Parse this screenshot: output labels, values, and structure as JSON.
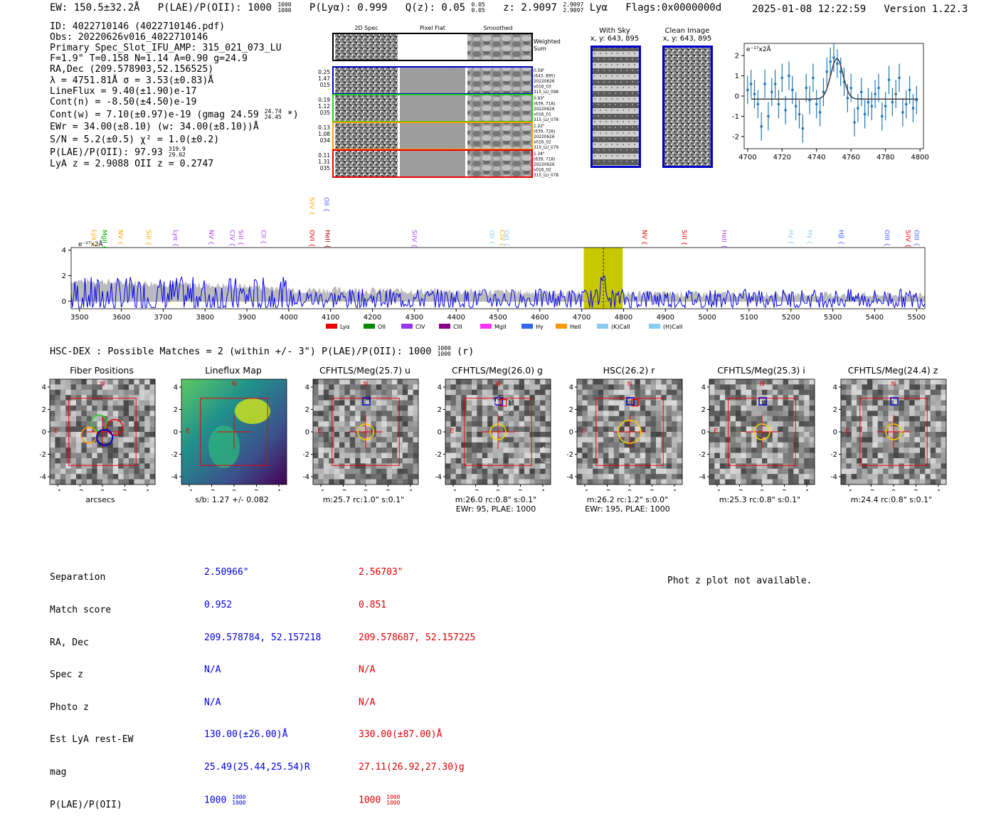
{
  "header": {
    "ew": "EW: 150.5±32.2Å",
    "plae": "P(LAE)/P(OII): 1000",
    "plae_hi": "1000",
    "plae_lo": "1000",
    "plya": "P(Lyα): 0.999",
    "qz": "Q(z): 0.05",
    "qz_hi": "0.05",
    "qz_lo": "0.05",
    "z": "z: 2.9097",
    "z_hi": "2.9097",
    "z_lo": "2.9097",
    "line": "Lyα",
    "flags": "Flags:0x0000000d",
    "timestamp": "2025-01-08 12:22:59",
    "version": "Version 1.22.3"
  },
  "summary": {
    "lines": [
      "ID: 4022710146 (4022710146.pdf)",
      "Obs: 20220626v016_4022710146",
      "Primary Spec_Slot_IFU_AMP: 315_021_073_LU",
      "F=1.9\"  T=0.158  N=1.14  A=0.90  g=24.9",
      "RA,Dec (209.578903,52.156525)",
      "λ = 4751.81Å   σ = 3.53(±0.83)Å",
      "LineFlux = 9.40(±1.90)e-17",
      "Cont(n) = -8.50(±4.50)e-19",
      "Cont(w) = 7.10(±0.97)e-19 (gmag 24.59",
      "EWr = 34.00(±8.10) (w: 34.00(±8.10))Å",
      "S/N = 5.2(±0.5)  χ² = 1.0(±0.2)",
      "P(LAE)/P(OII): 97.93",
      "LyA z = 2.9088  OII z = 0.2747"
    ],
    "gmag_hi": "24.74",
    "gmag_lo": "24.45",
    "gmag_tail": "*)",
    "plae_hi": "319.9",
    "plae_lo": "29.02"
  },
  "spec2d": {
    "col_headers": [
      "2D Spec",
      "Pixel Flat",
      "Smoothed"
    ],
    "weighted_label": [
      "Weighted",
      "Sum"
    ],
    "rows": [
      {
        "left": [
          "0.25",
          "1.47",
          "015"
        ],
        "right": [
          "0.59\"",
          "(643, 895)",
          "20220626",
          "v016_03",
          "315_LU_098"
        ],
        "color": "#0000cc"
      },
      {
        "left": [
          "0.19",
          "1.12",
          "035"
        ],
        "right": [
          "0.93\"",
          "(639, 718)",
          "20220626",
          "v016_01",
          "315_LU_078"
        ],
        "color": "#22cc22"
      },
      {
        "left": [
          "0.13",
          "1.08",
          "034"
        ],
        "right": [
          "1.22\"",
          "(639, 726)",
          "20220626",
          "v016_02",
          "315_LU_079"
        ],
        "color": "#ff9900"
      },
      {
        "left": [
          "0.11",
          "1.31",
          "035"
        ],
        "right": [
          "1.34\"",
          "(639, 718)",
          "20220626",
          "v016_02",
          "315_LU_078"
        ],
        "color": "#ee0000"
      }
    ]
  },
  "sky": {
    "title": "With Sky",
    "coords": "x, y: 643, 895"
  },
  "clean": {
    "title": "Clean Image",
    "coords": "x, y: 643, 895"
  },
  "chart_data": [
    {
      "type": "scatter",
      "name": "line-zoom",
      "unit_label": "e⁻¹⁷x2Å",
      "xlim": [
        4698,
        4802
      ],
      "ylim": [
        -2.6,
        2.6
      ],
      "xticks": [
        4700,
        4720,
        4740,
        4760,
        4780,
        4800
      ],
      "yticks": [
        -2,
        -1,
        0,
        1,
        2
      ],
      "x": [
        4700,
        4702,
        4704,
        4706,
        4708,
        4710,
        4712,
        4714,
        4716,
        4718,
        4720,
        4722,
        4724,
        4726,
        4728,
        4730,
        4732,
        4734,
        4736,
        4738,
        4740,
        4742,
        4744,
        4746,
        4748,
        4750,
        4752,
        4754,
        4756,
        4758,
        4760,
        4762,
        4764,
        4766,
        4768,
        4770,
        4772,
        4774,
        4776,
        4778,
        4780,
        4782,
        4784,
        4786,
        4788,
        4790,
        4792,
        4794,
        4796,
        4798
      ],
      "y": [
        0.3,
        0.6,
        0.1,
        -0.4,
        -1.5,
        0.6,
        -1.0,
        0.2,
        0.6,
        -0.4,
        0.9,
        -0.7,
        1.0,
        0.3,
        -0.5,
        -0.9,
        -1.6,
        0.4,
        -0.2,
        0.9,
        -0.4,
        -0.8,
        0.2,
        1.2,
        1.7,
        1.9,
        1.6,
        1.2,
        0.7,
        -0.1,
        0.4,
        -1.3,
        -0.6,
        0.2,
        -0.9,
        -0.3,
        -0.5,
        0.1,
        0.4,
        -1.0,
        -0.5,
        0.8,
        -0.3,
        0.1,
        0.9,
        -0.8,
        -0.4,
        0.3,
        -0.6,
        -0.2
      ],
      "yerr": [
        0.7,
        0.7,
        0.7,
        0.7,
        0.7,
        0.7,
        0.7,
        0.7,
        0.7,
        0.7,
        0.7,
        0.7,
        0.7,
        0.7,
        0.7,
        0.7,
        0.7,
        0.7,
        0.7,
        0.7,
        0.7,
        0.7,
        0.7,
        0.7,
        0.7,
        0.7,
        0.7,
        0.7,
        0.7,
        0.7,
        0.7,
        0.7,
        0.7,
        0.7,
        0.7,
        0.7,
        0.7,
        0.7,
        0.7,
        0.7,
        0.7,
        0.7,
        0.7,
        0.7,
        0.7,
        0.7,
        0.7,
        0.7,
        0.7,
        0.7
      ],
      "model": {
        "center": 4751.8,
        "sigma": 3.53,
        "amp": 2.0,
        "baseline": -0.15
      }
    },
    {
      "type": "line",
      "name": "full-spectrum",
      "unit_label": "e⁻¹⁷x2Å",
      "xlim": [
        3480,
        5520
      ],
      "ylim": [
        -0.6,
        4.2
      ],
      "xticks": [
        3500,
        3600,
        3700,
        3800,
        3900,
        4000,
        4100,
        4200,
        4300,
        4400,
        4500,
        4600,
        4700,
        4800,
        4900,
        5000,
        5100,
        5200,
        5300,
        5400,
        5500
      ],
      "yticks": [
        0,
        2,
        4
      ],
      "highlight_range": [
        4705,
        4798
      ],
      "line_center": 4751.8,
      "lines": [
        {
          "label": "Lyα",
          "x": 3525,
          "color": "#ffaa00",
          "row": 1
        },
        {
          "label": "MgII",
          "x": 3550,
          "color": "#00aa00",
          "row": 1
        },
        {
          "label": "NV",
          "x": 3588,
          "color": "#ffaa00",
          "row": 1
        },
        {
          "label": "SiII",
          "x": 3655,
          "color": "#ffaa00",
          "row": 1
        },
        {
          "label": "Lyα",
          "x": 3720,
          "color": "#aa44ee",
          "row": 1
        },
        {
          "label": "NV",
          "x": 3805,
          "color": "#aa44ee",
          "row": 1
        },
        {
          "label": "CIV",
          "x": 3855,
          "color": "#aa44ee",
          "row": 1
        },
        {
          "label": "SiII",
          "x": 3875,
          "color": "#aa44ee",
          "row": 1
        },
        {
          "label": "CII",
          "x": 3930,
          "color": "#aa44ee",
          "row": 1
        },
        {
          "label": "OVI",
          "x": 4045,
          "color": "#ee0000",
          "row": 1
        },
        {
          "label": "HeII",
          "x": 4083,
          "color": "#aa0000",
          "row": 1
        },
        {
          "label": "SiIV",
          "x": 4045,
          "color": "#ffaa00",
          "row": 0
        },
        {
          "label": "OII",
          "x": 4080,
          "color": "#4466ff",
          "row": 0
        },
        {
          "label": "SiIV",
          "x": 4290,
          "color": "#aa44ee",
          "row": 1
        },
        {
          "label": "OII",
          "x": 4475,
          "color": "#88ccff",
          "row": 1
        },
        {
          "label": "CIV",
          "x": 4500,
          "color": "#ffaa00",
          "row": 1
        },
        {
          "label": "OIII",
          "x": 4510,
          "color": "#88ccff",
          "row": 1
        },
        {
          "label": "NV",
          "x": 4840,
          "color": "#ee0000",
          "row": 1
        },
        {
          "label": "SiII",
          "x": 4935,
          "color": "#ee0000",
          "row": 1
        },
        {
          "label": "HeII",
          "x": 5030,
          "color": "#aa44ee",
          "row": 1
        },
        {
          "label": "Hγ",
          "x": 5190,
          "color": "#88ccff",
          "row": 1
        },
        {
          "label": "Hγ",
          "x": 5235,
          "color": "#88ccff",
          "row": 1
        },
        {
          "label": "Hβ",
          "x": 5310,
          "color": "#4466ff",
          "row": 1
        },
        {
          "label": "OIII",
          "x": 5420,
          "color": "#4466ff",
          "row": 1
        },
        {
          "label": "SiIV",
          "x": 5470,
          "color": "#ee0000",
          "row": 1
        },
        {
          "label": "OIII",
          "x": 5490,
          "color": "#4466ff",
          "row": 1
        }
      ],
      "legend": [
        {
          "label": "Lyα",
          "color": "#ee0000"
        },
        {
          "label": "OII",
          "color": "#008800"
        },
        {
          "label": "CIV",
          "color": "#9933ee"
        },
        {
          "label": "CIII",
          "color": "#880088"
        },
        {
          "label": "MgII",
          "color": "#ff33ff"
        },
        {
          "label": "Hγ",
          "color": "#3366ee"
        },
        {
          "label": "HeII",
          "color": "#ff9900"
        },
        {
          "label": "(K)CaII",
          "color": "#88ccee"
        },
        {
          "label": "(H)CaII",
          "color": "#88ccee"
        }
      ]
    }
  ],
  "hsc": {
    "prefix": "HSC-DEX : Possible Matches = 2 (within +/- 3\")  P(LAE)/P(OII): 1000",
    "frac_hi": "1000",
    "frac_lo": "1000",
    "suffix": "(r)"
  },
  "cutouts": [
    {
      "title": "Fiber Positions",
      "caption": "arcsecs",
      "caption2": ""
    },
    {
      "title": "Lineflux Map",
      "caption": "s/b: 1.27 +/- 0.082",
      "caption2": ""
    },
    {
      "title": "CFHTLS/Meg(25.7) u",
      "caption": "m:25.7 rc:1.0\"  s:0.1\"",
      "caption2": ""
    },
    {
      "title": "CFHTLS/Meg(26.0) g",
      "caption": "m:26.0 rc:0.8\"  s:0.1\"",
      "caption2": "EWr: 95, PLAE: 1000"
    },
    {
      "title": "HSC(26.2) r",
      "caption": "m:26.2 rc:1.2\"  s:0.0\"",
      "caption2": "EWr: 195, PLAE: 1000"
    },
    {
      "title": "CFHTLS/Meg(25.3) i",
      "caption": "m:25.3 rc:0.8\"  s:0.1\"",
      "caption2": ""
    },
    {
      "title": "CFHTLS/Meg(24.4) z",
      "caption": "m:24.4 rc:0.8\"  s:0.1\"",
      "caption2": ""
    }
  ],
  "cutout_axis": {
    "ticks": [
      -4,
      -2,
      0,
      2,
      4
    ],
    "north": "N",
    "east": "E"
  },
  "matches": {
    "labels": [
      "Separation",
      "Match score",
      "RA, Dec",
      "Spec z",
      "Photo z",
      "Est LyA rest-EW",
      "mag",
      "P(LAE)/P(OII)"
    ],
    "m1": [
      "2.50966\"",
      "0.952",
      "209.578784, 52.157218",
      "N/A",
      "N/A",
      "130.00(±26.00)Å",
      "25.49(25.44,25.54)R",
      "1000"
    ],
    "m2": [
      "2.56703\"",
      "0.851",
      "209.578687, 52.157225",
      "N/A",
      "N/A",
      "330.00(±87.00)Å",
      "27.11(26.92,27.30)g",
      "1000"
    ],
    "frac_hi": "1000",
    "frac_lo": "1000"
  },
  "photz": "Phot z plot not available.",
  "colors": {
    "blue": "#0000dd",
    "red": "#dd0000",
    "spectrum": "#0000ee",
    "error": "#bbbbbb",
    "highlight": "#c8c800",
    "marker": "#1f77b4"
  }
}
